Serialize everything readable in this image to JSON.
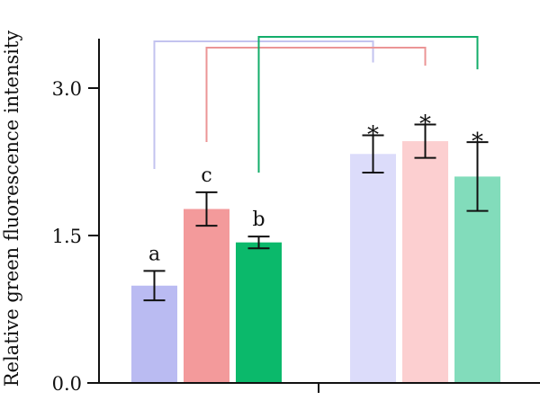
{
  "chart_data": {
    "type": "bar",
    "ylabel": "Relative green fluorescence intensity",
    "ylim": [
      0,
      3.5
    ],
    "yticks": [
      0.0,
      1.5,
      3.0
    ],
    "ytick_labels": [
      "0.0",
      "1.5",
      "3.0"
    ],
    "grid": false,
    "legend": "none",
    "series": [
      {
        "group": 1,
        "value": 0.99,
        "error": 0.15,
        "color": "#babbf2",
        "label": "a"
      },
      {
        "group": 1,
        "value": 1.77,
        "error": 0.17,
        "color": "#f39a9b",
        "label": "c"
      },
      {
        "group": 1,
        "value": 1.43,
        "error": 0.06,
        "color": "#0bb96b",
        "label": "b"
      },
      {
        "group": 2,
        "value": 2.33,
        "error": 0.19,
        "color": "#dcdcfa",
        "label": "*"
      },
      {
        "group": 2,
        "value": 2.46,
        "error": 0.17,
        "color": "#fccfd0",
        "label": "*"
      },
      {
        "group": 2,
        "value": 2.1,
        "error": 0.35,
        "color": "#82dcbb",
        "label": "*"
      }
    ],
    "comparisons": [
      {
        "from": 0,
        "to": 3,
        "color": "#c3c3ef"
      },
      {
        "from": 1,
        "to": 4,
        "color": "#eb9596"
      },
      {
        "from": 2,
        "to": 5,
        "color": "#13ad6a"
      }
    ]
  }
}
